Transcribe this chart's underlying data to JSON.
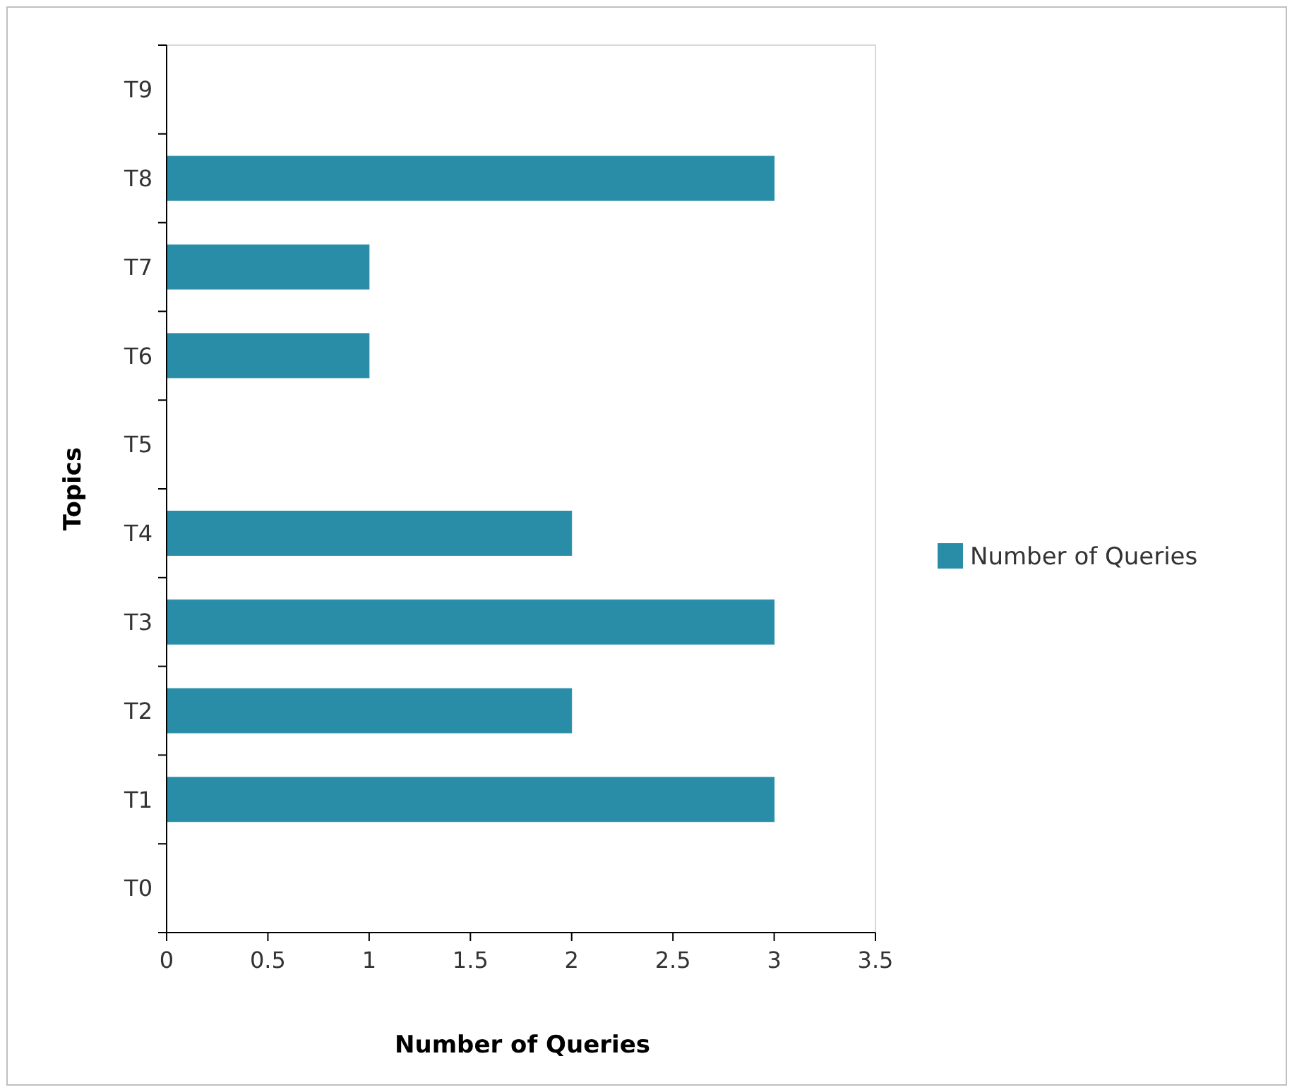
{
  "chart_data": {
    "type": "bar",
    "orientation": "horizontal",
    "xlabel": "Number of Queries",
    "ylabel": "Topics",
    "categories": [
      "T9",
      "T8",
      "T7",
      "T6",
      "T5",
      "T4",
      "T3",
      "T2",
      "T1",
      "T0"
    ],
    "series": [
      {
        "name": "Number of Queries",
        "color": "#2a8da8",
        "values": [
          0,
          3,
          1,
          1,
          0,
          2,
          3,
          2,
          3,
          0
        ]
      }
    ],
    "xlim": [
      0,
      3.5
    ],
    "xticks": [
      0,
      0.5,
      1,
      1.5,
      2,
      2.5,
      3,
      3.5
    ],
    "grid": false,
    "legend": "right"
  }
}
